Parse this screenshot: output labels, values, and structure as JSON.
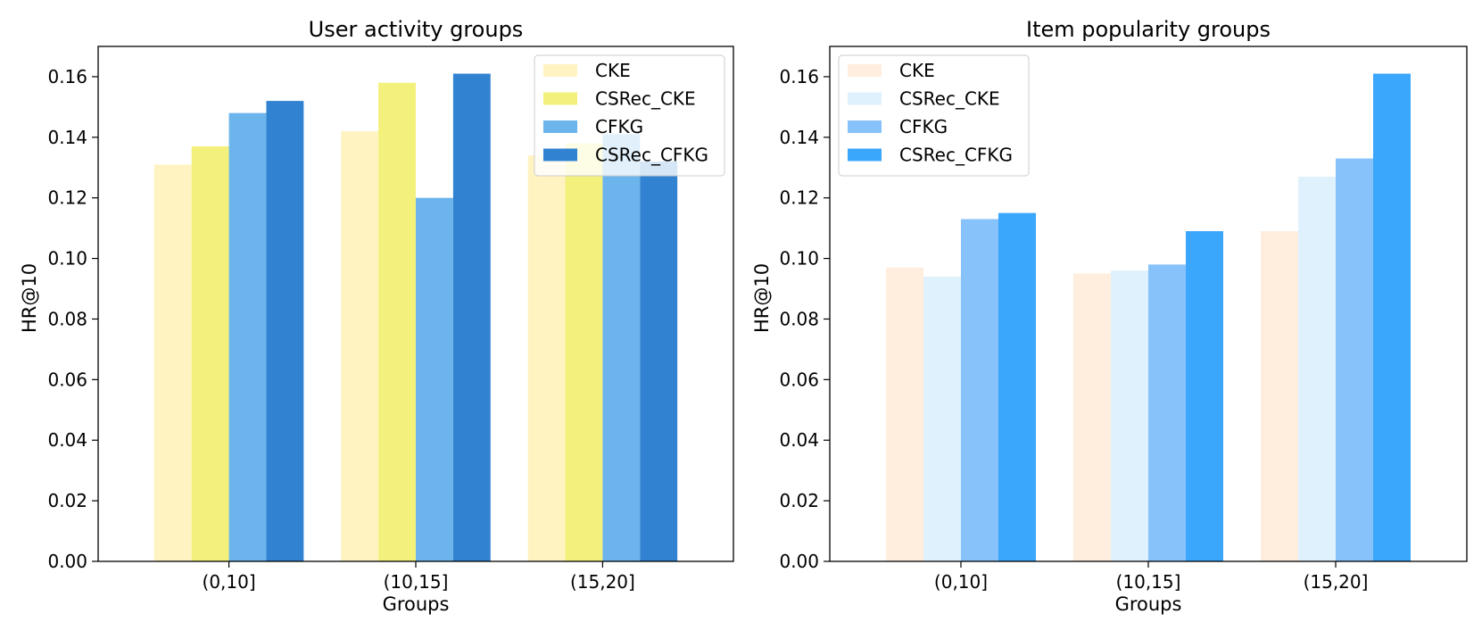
{
  "chart_data": [
    {
      "type": "bar",
      "title": "User activity groups",
      "xlabel": "Groups",
      "ylabel": "HR@10",
      "categories": [
        "(0,10]",
        "(10,15]",
        "(15,20]"
      ],
      "ylim": [
        0,
        0.17
      ],
      "yticks": [
        "0.00",
        "0.02",
        "0.04",
        "0.06",
        "0.08",
        "0.10",
        "0.12",
        "0.14",
        "0.16"
      ],
      "legend_position": "top-right",
      "grid": false,
      "series": [
        {
          "name": "CKE",
          "color": "#FFF3C2",
          "values": [
            0.131,
            0.142,
            0.134
          ]
        },
        {
          "name": "CSRec_CKE",
          "color": "#F3F07C",
          "values": [
            0.137,
            0.158,
            0.138
          ]
        },
        {
          "name": "CFKG",
          "color": "#6CB5EC",
          "values": [
            0.148,
            0.12,
            0.141
          ]
        },
        {
          "name": "CSRec_CFKG",
          "color": "#3182D1",
          "values": [
            0.152,
            0.161,
            0.132
          ]
        }
      ]
    },
    {
      "type": "bar",
      "title": "Item popularity groups",
      "xlabel": "Groups",
      "ylabel": "HR@10",
      "categories": [
        "(0,10]",
        "(10,15]",
        "(15,20]"
      ],
      "ylim": [
        0,
        0.17
      ],
      "yticks": [
        "0.00",
        "0.02",
        "0.04",
        "0.06",
        "0.08",
        "0.10",
        "0.12",
        "0.14",
        "0.16"
      ],
      "legend_position": "top-left",
      "grid": false,
      "series": [
        {
          "name": "CKE",
          "color": "#FFEEDD",
          "values": [
            0.097,
            0.095,
            0.109
          ]
        },
        {
          "name": "CSRec_CKE",
          "color": "#DFF1FD",
          "values": [
            0.094,
            0.096,
            0.127
          ]
        },
        {
          "name": "CFKG",
          "color": "#88C2FB",
          "values": [
            0.113,
            0.098,
            0.133
          ]
        },
        {
          "name": "CSRec_CFKG",
          "color": "#3AA6FC",
          "values": [
            0.115,
            0.109,
            0.161
          ]
        }
      ]
    }
  ]
}
